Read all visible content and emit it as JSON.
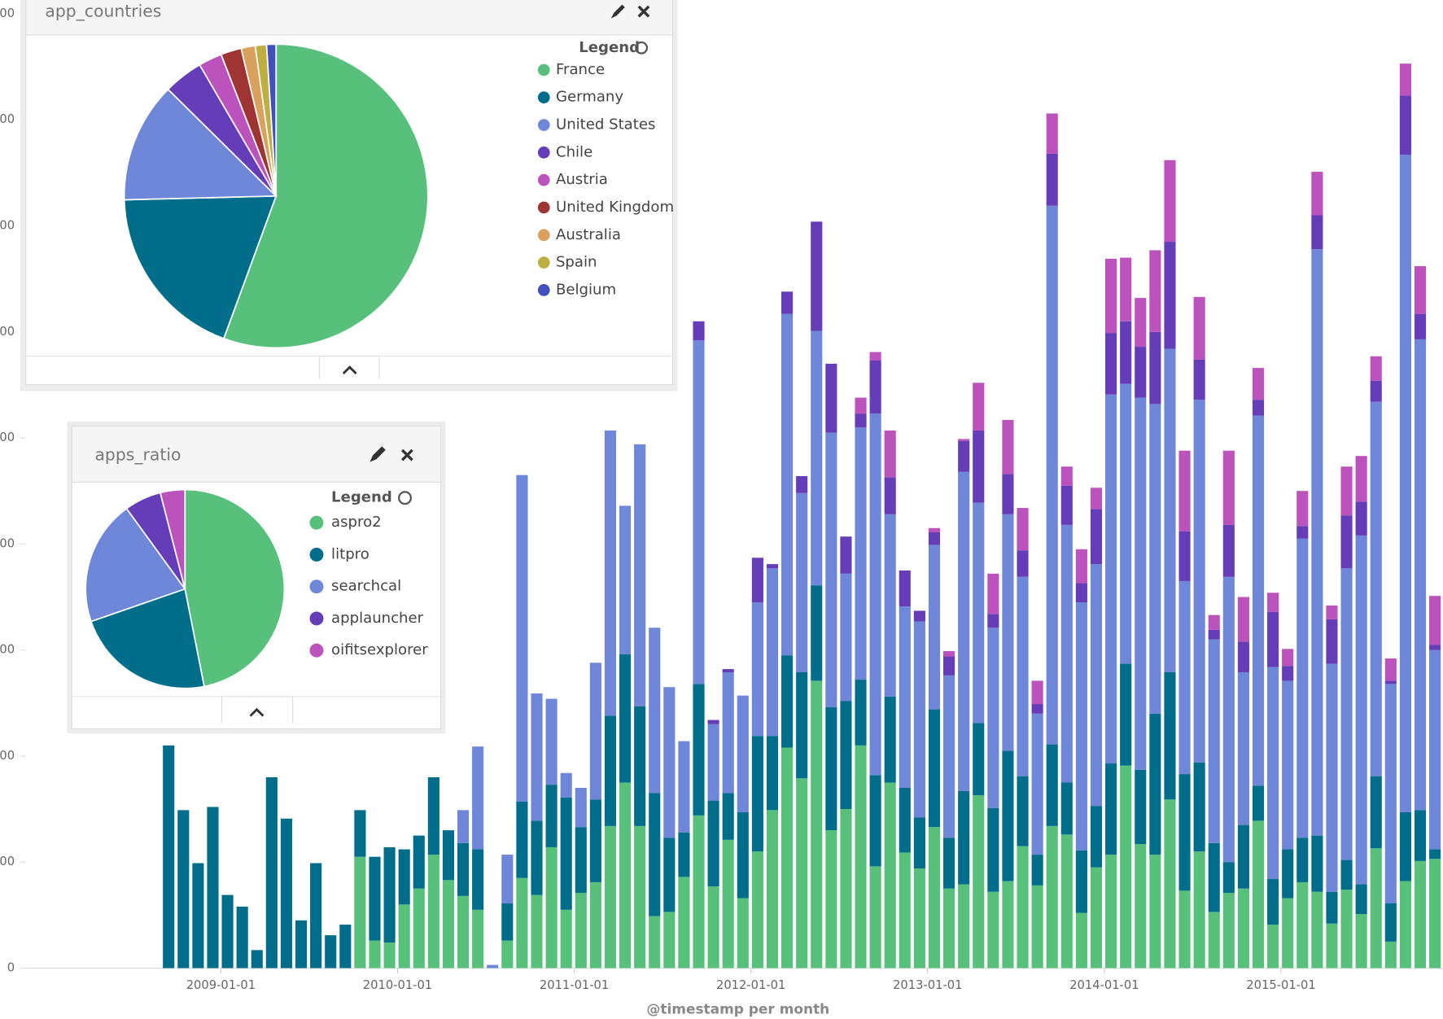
{
  "chart_data": [
    {
      "type": "bar",
      "stacked": true,
      "x_label": "@timestamp per month",
      "categories": [
        null,
        null,
        null,
        null,
        "2009-01-01",
        null,
        null,
        null,
        null,
        null,
        null,
        null,
        null,
        null,
        null,
        null,
        "2010-01-01",
        null,
        null,
        null,
        null,
        null,
        null,
        null,
        null,
        null,
        null,
        null,
        "2011-01-01",
        null,
        null,
        null,
        null,
        null,
        null,
        null,
        null,
        null,
        null,
        null,
        "2012-01-01",
        null,
        null,
        null,
        null,
        null,
        null,
        null,
        null,
        null,
        null,
        null,
        "2013-01-01",
        null,
        null,
        null,
        null,
        null,
        null,
        null,
        null,
        null,
        null,
        null,
        "2014-01-01",
        null,
        null,
        null,
        null,
        null,
        null,
        null,
        null,
        null,
        null,
        null,
        "2015-01-01",
        null,
        null,
        null,
        null,
        null,
        null,
        null,
        null,
        null,
        null
      ],
      "series": [
        {
          "color": "#57c17b",
          "values": [
            0,
            0,
            0,
            0,
            0,
            0,
            0,
            0,
            0,
            0,
            0,
            0,
            0,
            105,
            26,
            24,
            60,
            75,
            107,
            83,
            68,
            55,
            0,
            26,
            85,
            69,
            114,
            55,
            71,
            81,
            134,
            175,
            134,
            49,
            53,
            86,
            144,
            77,
            121,
            66,
            110,
            149,
            208,
            179,
            271,
            130,
            150,
            210,
            96,
            175,
            109,
            94,
            133,
            75,
            79,
            163,
            72,
            82,
            115,
            78,
            134,
            126,
            52,
            95,
            107,
            191,
            117,
            107,
            159,
            73,
            110,
            53,
            71,
            75,
            139,
            41,
            66,
            81,
            72,
            42,
            74,
            51,
            113,
            25,
            82,
            101,
            103
          ]
        },
        {
          "color": "#006e8a",
          "values": [
            210,
            149,
            99,
            152,
            69,
            58,
            17,
            180,
            141,
            45,
            99,
            31,
            41,
            44,
            79,
            90,
            52,
            50,
            73,
            47,
            50,
            57,
            0,
            35,
            72,
            70,
            59,
            106,
            62,
            78,
            104,
            121,
            113,
            116,
            70,
            42,
            124,
            81,
            44,
            81,
            109,
            70,
            87,
            100,
            90,
            116,
            102,
            62,
            86,
            81,
            61,
            48,
            111,
            48,
            88,
            68,
            79,
            123,
            66,
            29,
            77,
            49,
            59,
            58,
            86,
            96,
            70,
            133,
            120,
            110,
            84,
            65,
            29,
            60,
            33,
            43,
            46,
            42,
            53,
            30,
            28,
            28,
            68,
            36,
            65,
            48,
            9
          ]
        },
        {
          "color": "#6f87d8",
          "values": [
            0,
            0,
            0,
            0,
            0,
            0,
            0,
            0,
            0,
            0,
            0,
            0,
            0,
            0,
            0,
            0,
            0,
            0,
            0,
            0,
            31,
            97,
            3,
            46,
            308,
            120,
            81,
            23,
            37,
            129,
            269,
            140,
            247,
            156,
            142,
            86,
            324,
            72,
            114,
            110,
            126,
            158,
            322,
            169,
            240,
            259,
            120,
            238,
            341,
            172,
            171,
            185,
            155,
            153,
            301,
            208,
            170,
            223,
            188,
            133,
            508,
            243,
            234,
            228,
            348,
            264,
            351,
            292,
            305,
            182,
            342,
            192,
            269,
            144,
            349,
            200,
            159,
            282,
            553,
            215,
            275,
            329,
            353,
            207,
            620,
            444,
            188
          ]
        },
        {
          "color": "#663db8",
          "values": [
            0,
            0,
            0,
            0,
            0,
            0,
            0,
            0,
            0,
            0,
            0,
            0,
            0,
            0,
            0,
            0,
            0,
            0,
            0,
            0,
            0,
            0,
            0,
            0,
            0,
            0,
            0,
            0,
            0,
            0,
            0,
            0,
            0,
            0,
            0,
            0,
            18,
            4,
            3,
            0,
            42,
            4,
            21,
            16,
            103,
            65,
            35,
            13,
            50,
            35,
            34,
            10,
            12,
            18,
            29,
            68,
            13,
            38,
            25,
            9,
            49,
            37,
            18,
            52,
            58,
            59,
            48,
            68,
            101,
            47,
            38,
            9,
            49,
            29,
            15,
            52,
            14,
            12,
            32,
            42,
            50,
            32,
            20,
            3,
            56,
            24,
            5
          ]
        },
        {
          "color": "#bc52bc",
          "values": [
            0,
            0,
            0,
            0,
            0,
            0,
            0,
            0,
            0,
            0,
            0,
            0,
            0,
            0,
            0,
            0,
            0,
            0,
            0,
            0,
            0,
            0,
            0,
            0,
            0,
            0,
            0,
            0,
            0,
            0,
            0,
            0,
            0,
            0,
            0,
            0,
            0,
            0,
            0,
            0,
            0,
            0,
            0,
            0,
            0,
            0,
            0,
            15,
            8,
            44,
            0,
            0,
            4,
            5,
            2,
            45,
            38,
            51,
            40,
            22,
            38,
            18,
            32,
            20,
            70,
            60,
            46,
            77,
            77,
            76,
            59,
            14,
            70,
            42,
            30,
            18,
            16,
            33,
            41,
            13,
            46,
            43,
            23,
            21,
            30,
            45,
            46
          ]
        }
      ],
      "ylim": [
        0,
        900
      ],
      "yticks": [
        0,
        {
          "value": 100,
          "label": "00"
        },
        {
          "value": 200,
          "label": "00"
        },
        {
          "value": 300,
          "label": "00"
        },
        {
          "value": 400,
          "label": "00"
        },
        {
          "value": 500,
          "label": "00"
        },
        {
          "value": 600,
          "label": "00"
        },
        {
          "value": 700,
          "label": "00"
        },
        {
          "value": 800,
          "label": "00"
        },
        {
          "value": 900,
          "label": "00"
        }
      ],
      "grid": false
    },
    {
      "type": "pie",
      "title": "app_countries",
      "legend_title": "Legend",
      "categories": [
        "France",
        "Germany",
        "United States",
        "Chile",
        "Austria",
        "United Kingdom",
        "Australia",
        "Spain",
        "Belgium"
      ],
      "values": [
        55.6,
        19,
        12.8,
        4.2,
        2.5,
        2.2,
        1.5,
        1.2,
        1
      ],
      "colors": [
        "#57c17b",
        "#006e8a",
        "#6f87d8",
        "#663db8",
        "#bc52bc",
        "#9e3533",
        "#daa05d",
        "#bfaf40",
        "#4050bf"
      ]
    },
    {
      "type": "pie",
      "title": "apps_ratio",
      "legend_title": "Legend",
      "categories": [
        "aspro2",
        "litpro",
        "searchcal",
        "applauncher",
        "oifitsexplorer"
      ],
      "values": [
        46.9,
        22.8,
        20.3,
        6,
        4
      ],
      "colors": [
        "#57c17b",
        "#006e8a",
        "#6f87d8",
        "#663db8",
        "#bc52bc"
      ]
    }
  ]
}
